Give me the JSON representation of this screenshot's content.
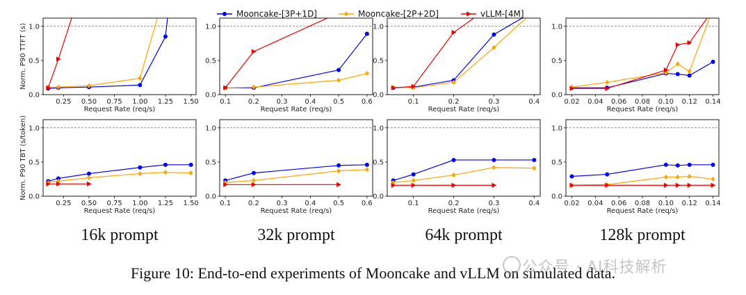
{
  "colors": {
    "mooncake_3p1d": "#0000ee",
    "mooncake_2p2d": "#ffa500",
    "vllm_4m": "#ee0000",
    "refline": "#666666"
  },
  "legend": [
    {
      "name": "Mooncake-[3P+1D]",
      "color": "#0000ee",
      "marker": "circle"
    },
    {
      "name": "Mooncake-[2P+2D]",
      "color": "#ffa500",
      "marker": "diamond"
    },
    {
      "name": "vLLM-[4M]",
      "color": "#ee0000",
      "marker": "triangle-right"
    }
  ],
  "row_labels": {
    "ttft": "Norm. P90 TTFT (s)",
    "tbt": "Norm. P90 TBT (s/token)"
  },
  "xlabel": "Request Rate (req/s)",
  "panel_titles": [
    "16k prompt",
    "32k prompt",
    "64k prompt",
    "128k prompt"
  ],
  "caption": "Figure 10: End-to-end experiments of Mooncake and vLLM on simulated data.",
  "watermark": "公众号 · AI科技解析",
  "chart_data": [
    {
      "type": "line",
      "row": "ttft",
      "panel": "16k prompt",
      "xlim": [
        0.05,
        1.55
      ],
      "ylim": [
        0,
        1.12
      ],
      "xticks": [
        0.25,
        0.5,
        0.75,
        1.0,
        1.25,
        1.5
      ],
      "xticklabels": [
        "0.25",
        "0.50",
        "0.75",
        "1.00",
        "1.25",
        "1.50"
      ],
      "yticks": [
        0,
        0.5,
        1.0
      ],
      "yticklabels": [
        "0.0",
        "0.5",
        "1.0"
      ],
      "ref_y": 1.0,
      "series": [
        {
          "name": "Mooncake-[3P+1D]",
          "x": [
            0.1,
            0.2,
            0.5,
            1.0,
            1.25,
            1.27
          ],
          "y": [
            0.09,
            0.1,
            0.11,
            0.14,
            0.85,
            1.12
          ]
        },
        {
          "name": "Mooncake-[2P+2D]",
          "x": [
            0.1,
            0.2,
            0.5,
            1.0,
            1.17
          ],
          "y": [
            0.11,
            0.11,
            0.13,
            0.24,
            1.12
          ]
        },
        {
          "name": "vLLM-[4M]",
          "x": [
            0.1,
            0.2,
            0.33
          ],
          "y": [
            0.1,
            0.52,
            1.12
          ]
        }
      ]
    },
    {
      "type": "line",
      "row": "ttft",
      "panel": "32k prompt",
      "xlim": [
        0.08,
        0.62
      ],
      "ylim": [
        0,
        1.12
      ],
      "xticks": [
        0.1,
        0.2,
        0.3,
        0.4,
        0.5,
        0.6
      ],
      "xticklabels": [
        "0.1",
        "0.2",
        "0.3",
        "0.4",
        "0.5",
        "0.6"
      ],
      "yticks": [
        0,
        0.5,
        1.0
      ],
      "yticklabels": [
        "0.0",
        "0.5",
        "1.0"
      ],
      "ref_y": 1.0,
      "series": [
        {
          "name": "Mooncake-[3P+1D]",
          "x": [
            0.1,
            0.2,
            0.5,
            0.6
          ],
          "y": [
            0.1,
            0.1,
            0.36,
            0.89
          ]
        },
        {
          "name": "Mooncake-[2P+2D]",
          "x": [
            0.1,
            0.2,
            0.5,
            0.6
          ],
          "y": [
            0.1,
            0.11,
            0.21,
            0.31
          ]
        },
        {
          "name": "vLLM-[4M]",
          "x": [
            0.1,
            0.2,
            0.46
          ],
          "y": [
            0.1,
            0.63,
            1.12
          ]
        }
      ]
    },
    {
      "type": "line",
      "row": "ttft",
      "panel": "64k prompt",
      "xlim": [
        0.035,
        0.415
      ],
      "ylim": [
        0,
        1.12
      ],
      "xticks": [
        0.1,
        0.2,
        0.3,
        0.4
      ],
      "xticklabels": [
        "0.1",
        "0.2",
        "0.3",
        "0.4"
      ],
      "yticks": [
        0,
        0.5,
        1.0
      ],
      "yticklabels": [
        "0.0",
        "0.5",
        "1.0"
      ],
      "ref_y": 1.0,
      "series": [
        {
          "name": "Mooncake-[3P+1D]",
          "x": [
            0.05,
            0.1,
            0.2,
            0.3,
            0.37
          ],
          "y": [
            0.1,
            0.11,
            0.21,
            0.88,
            1.12
          ]
        },
        {
          "name": "Mooncake-[2P+2D]",
          "x": [
            0.05,
            0.1,
            0.2,
            0.3,
            0.38
          ],
          "y": [
            0.11,
            0.1,
            0.18,
            0.69,
            1.12
          ]
        },
        {
          "name": "vLLM-[4M]",
          "x": [
            0.05,
            0.1,
            0.2,
            0.25
          ],
          "y": [
            0.1,
            0.12,
            0.91,
            1.12
          ]
        }
      ]
    },
    {
      "type": "line",
      "row": "ttft",
      "panel": "128k prompt",
      "xlim": [
        0.015,
        0.145
      ],
      "ylim": [
        0,
        1.12
      ],
      "xticks": [
        0.02,
        0.04,
        0.06,
        0.08,
        0.1,
        0.12,
        0.14
      ],
      "xticklabels": [
        "0.02",
        "0.04",
        "0.06",
        "0.08",
        "0.10",
        "0.12",
        "0.14"
      ],
      "yticks": [
        0,
        0.5,
        1.0
      ],
      "yticklabels": [
        "0.0",
        "0.5",
        "1.0"
      ],
      "ref_y": 1.0,
      "series": [
        {
          "name": "Mooncake-[3P+1D]",
          "x": [
            0.02,
            0.05,
            0.1,
            0.11,
            0.12,
            0.14
          ],
          "y": [
            0.1,
            0.1,
            0.31,
            0.3,
            0.28,
            0.48
          ]
        },
        {
          "name": "Mooncake-[2P+2D]",
          "x": [
            0.02,
            0.05,
            0.1,
            0.11,
            0.12,
            0.137
          ],
          "y": [
            0.11,
            0.18,
            0.32,
            0.45,
            0.34,
            1.12
          ]
        },
        {
          "name": "vLLM-[4M]",
          "x": [
            0.02,
            0.05,
            0.1,
            0.11,
            0.12,
            0.135
          ],
          "y": [
            0.09,
            0.09,
            0.36,
            0.73,
            0.76,
            1.12
          ]
        }
      ]
    },
    {
      "type": "line",
      "row": "tbt",
      "panel": "16k prompt",
      "xlim": [
        0.05,
        1.55
      ],
      "ylim": [
        0,
        1.12
      ],
      "xticks": [
        0.25,
        0.5,
        0.75,
        1.0,
        1.25,
        1.5
      ],
      "xticklabels": [
        "0.25",
        "0.50",
        "0.75",
        "1.00",
        "1.25",
        "1.50"
      ],
      "yticks": [
        0,
        0.5,
        1.0
      ],
      "yticklabels": [
        "0.0",
        "0.5",
        "1.0"
      ],
      "ref_y": 1.0,
      "series": [
        {
          "name": "Mooncake-[3P+1D]",
          "x": [
            0.1,
            0.2,
            0.5,
            1.0,
            1.25,
            1.5
          ],
          "y": [
            0.22,
            0.26,
            0.33,
            0.42,
            0.46,
            0.46
          ]
        },
        {
          "name": "Mooncake-[2P+2D]",
          "x": [
            0.1,
            0.2,
            0.5,
            1.0,
            1.25,
            1.5
          ],
          "y": [
            0.2,
            0.22,
            0.27,
            0.33,
            0.35,
            0.34
          ]
        },
        {
          "name": "vLLM-[4M]",
          "x": [
            0.1,
            0.2,
            0.5
          ],
          "y": [
            0.18,
            0.18,
            0.18
          ]
        }
      ]
    },
    {
      "type": "line",
      "row": "tbt",
      "panel": "32k prompt",
      "xlim": [
        0.08,
        0.62
      ],
      "ylim": [
        0,
        1.12
      ],
      "xticks": [
        0.1,
        0.2,
        0.3,
        0.4,
        0.5,
        0.6
      ],
      "xticklabels": [
        "0.1",
        "0.2",
        "0.3",
        "0.4",
        "0.5",
        "0.6"
      ],
      "yticks": [
        0,
        0.5,
        1.0
      ],
      "yticklabels": [
        "0.0",
        "0.5",
        "1.0"
      ],
      "ref_y": 1.0,
      "series": [
        {
          "name": "Mooncake-[3P+1D]",
          "x": [
            0.1,
            0.2,
            0.5,
            0.6
          ],
          "y": [
            0.23,
            0.34,
            0.45,
            0.46
          ]
        },
        {
          "name": "Mooncake-[2P+2D]",
          "x": [
            0.1,
            0.2,
            0.5,
            0.6
          ],
          "y": [
            0.2,
            0.23,
            0.37,
            0.39
          ]
        },
        {
          "name": "vLLM-[4M]",
          "x": [
            0.1,
            0.2,
            0.5
          ],
          "y": [
            0.17,
            0.17,
            0.17
          ]
        }
      ]
    },
    {
      "type": "line",
      "row": "tbt",
      "panel": "64k prompt",
      "xlim": [
        0.035,
        0.415
      ],
      "ylim": [
        0,
        1.12
      ],
      "xticks": [
        0.1,
        0.2,
        0.3,
        0.4
      ],
      "xticklabels": [
        "0.1",
        "0.2",
        "0.3",
        "0.4"
      ],
      "yticks": [
        0,
        0.5,
        1.0
      ],
      "yticklabels": [
        "0.0",
        "0.5",
        "1.0"
      ],
      "ref_y": 1.0,
      "series": [
        {
          "name": "Mooncake-[3P+1D]",
          "x": [
            0.05,
            0.1,
            0.2,
            0.3,
            0.4
          ],
          "y": [
            0.23,
            0.32,
            0.53,
            0.53,
            0.53
          ]
        },
        {
          "name": "Mooncake-[2P+2D]",
          "x": [
            0.05,
            0.1,
            0.2,
            0.3,
            0.4
          ],
          "y": [
            0.2,
            0.23,
            0.31,
            0.42,
            0.41
          ]
        },
        {
          "name": "vLLM-[4M]",
          "x": [
            0.05,
            0.1,
            0.2,
            0.3
          ],
          "y": [
            0.16,
            0.16,
            0.16,
            0.16
          ]
        }
      ]
    },
    {
      "type": "line",
      "row": "tbt",
      "panel": "128k prompt",
      "xlim": [
        0.015,
        0.145
      ],
      "ylim": [
        0,
        1.12
      ],
      "xticks": [
        0.02,
        0.04,
        0.06,
        0.08,
        0.1,
        0.12,
        0.14
      ],
      "xticklabels": [
        "0.02",
        "0.04",
        "0.06",
        "0.08",
        "0.10",
        "0.12",
        "0.14"
      ],
      "yticks": [
        0,
        0.5,
        1.0
      ],
      "yticklabels": [
        "0.0",
        "0.5",
        "1.0"
      ],
      "ref_y": 1.0,
      "series": [
        {
          "name": "Mooncake-[3P+1D]",
          "x": [
            0.02,
            0.05,
            0.1,
            0.11,
            0.12,
            0.14
          ],
          "y": [
            0.29,
            0.32,
            0.46,
            0.45,
            0.46,
            0.46
          ]
        },
        {
          "name": "Mooncake-[2P+2D]",
          "x": [
            0.02,
            0.05,
            0.1,
            0.11,
            0.12,
            0.14
          ],
          "y": [
            0.16,
            0.17,
            0.28,
            0.28,
            0.29,
            0.25
          ]
        },
        {
          "name": "vLLM-[4M]",
          "x": [
            0.02,
            0.05,
            0.1,
            0.11,
            0.12,
            0.14
          ],
          "y": [
            0.16,
            0.16,
            0.16,
            0.16,
            0.16,
            0.16
          ]
        }
      ]
    }
  ]
}
